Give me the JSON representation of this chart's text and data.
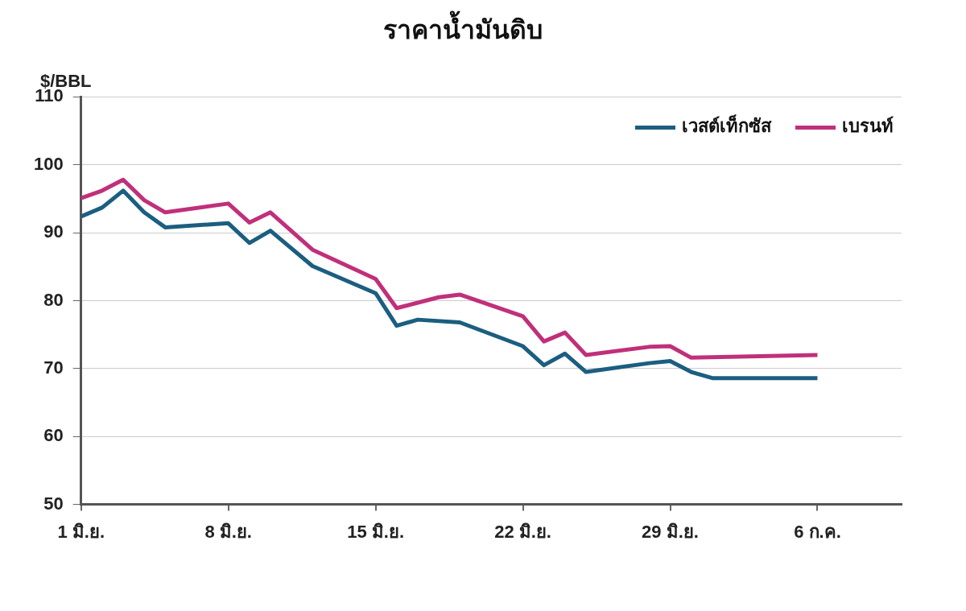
{
  "chart_data": {
    "type": "line",
    "title": "ราคาน้ำมันดิบ",
    "ylabel": "$/BBL",
    "xlim": [
      "--06-01",
      "--07-10"
    ],
    "xticks": [
      {
        "value": "--06-01",
        "label": "1 มิ.ย."
      },
      {
        "value": "--06-08",
        "label": "8 มิ.ย."
      },
      {
        "value": "--06-15",
        "label": "15 มิ.ย."
      },
      {
        "value": "--06-22",
        "label": "22 มิ.ย."
      },
      {
        "value": "--06-29",
        "label": "29 มิ.ย."
      },
      {
        "value": "--07-06",
        "label": "6 ก.ค."
      }
    ],
    "ylim": [
      50,
      110
    ],
    "yticks": [
      50,
      60,
      70,
      80,
      90,
      100,
      110
    ],
    "grid": "y",
    "legend": "top right",
    "line_style": "solid",
    "marker": "none",
    "series": [
      {
        "name": "เวสต์เท็กซัส",
        "color": "#1b5e80",
        "x": [
          "--06-01",
          "--06-02",
          "--06-03",
          "--06-04",
          "--06-05",
          "--06-08",
          "--06-09",
          "--06-10",
          "--06-12",
          "--06-15",
          "--06-16",
          "--06-17",
          "--06-19",
          "--06-22",
          "--06-23",
          "--06-24",
          "--06-25",
          "--06-28",
          "--06-29",
          "--06-30",
          "--07-01",
          "--07-06"
        ],
        "values": [
          92.4,
          93.7,
          96.2,
          93.0,
          90.8,
          91.4,
          88.5,
          90.3,
          85.1,
          81.1,
          76.3,
          77.2,
          76.8,
          73.3,
          70.5,
          72.2,
          69.5,
          70.8,
          71.1,
          69.5,
          68.6,
          68.6
        ]
      },
      {
        "name": "เบรนท์",
        "color": "#c0307a",
        "x": [
          "--06-01",
          "--06-02",
          "--06-03",
          "--06-04",
          "--06-05",
          "--06-08",
          "--06-09",
          "--06-10",
          "--06-12",
          "--06-15",
          "--06-16",
          "--06-18",
          "--06-19",
          "--06-22",
          "--06-23",
          "--06-24",
          "--06-25",
          "--06-28",
          "--06-29",
          "--06-30",
          "--07-06"
        ],
        "values": [
          95.1,
          96.2,
          97.8,
          94.8,
          93.0,
          94.3,
          91.5,
          93.0,
          87.5,
          83.2,
          78.9,
          80.5,
          80.9,
          77.7,
          74.0,
          75.3,
          72.0,
          73.2,
          73.3,
          71.6,
          72.0
        ]
      }
    ]
  }
}
